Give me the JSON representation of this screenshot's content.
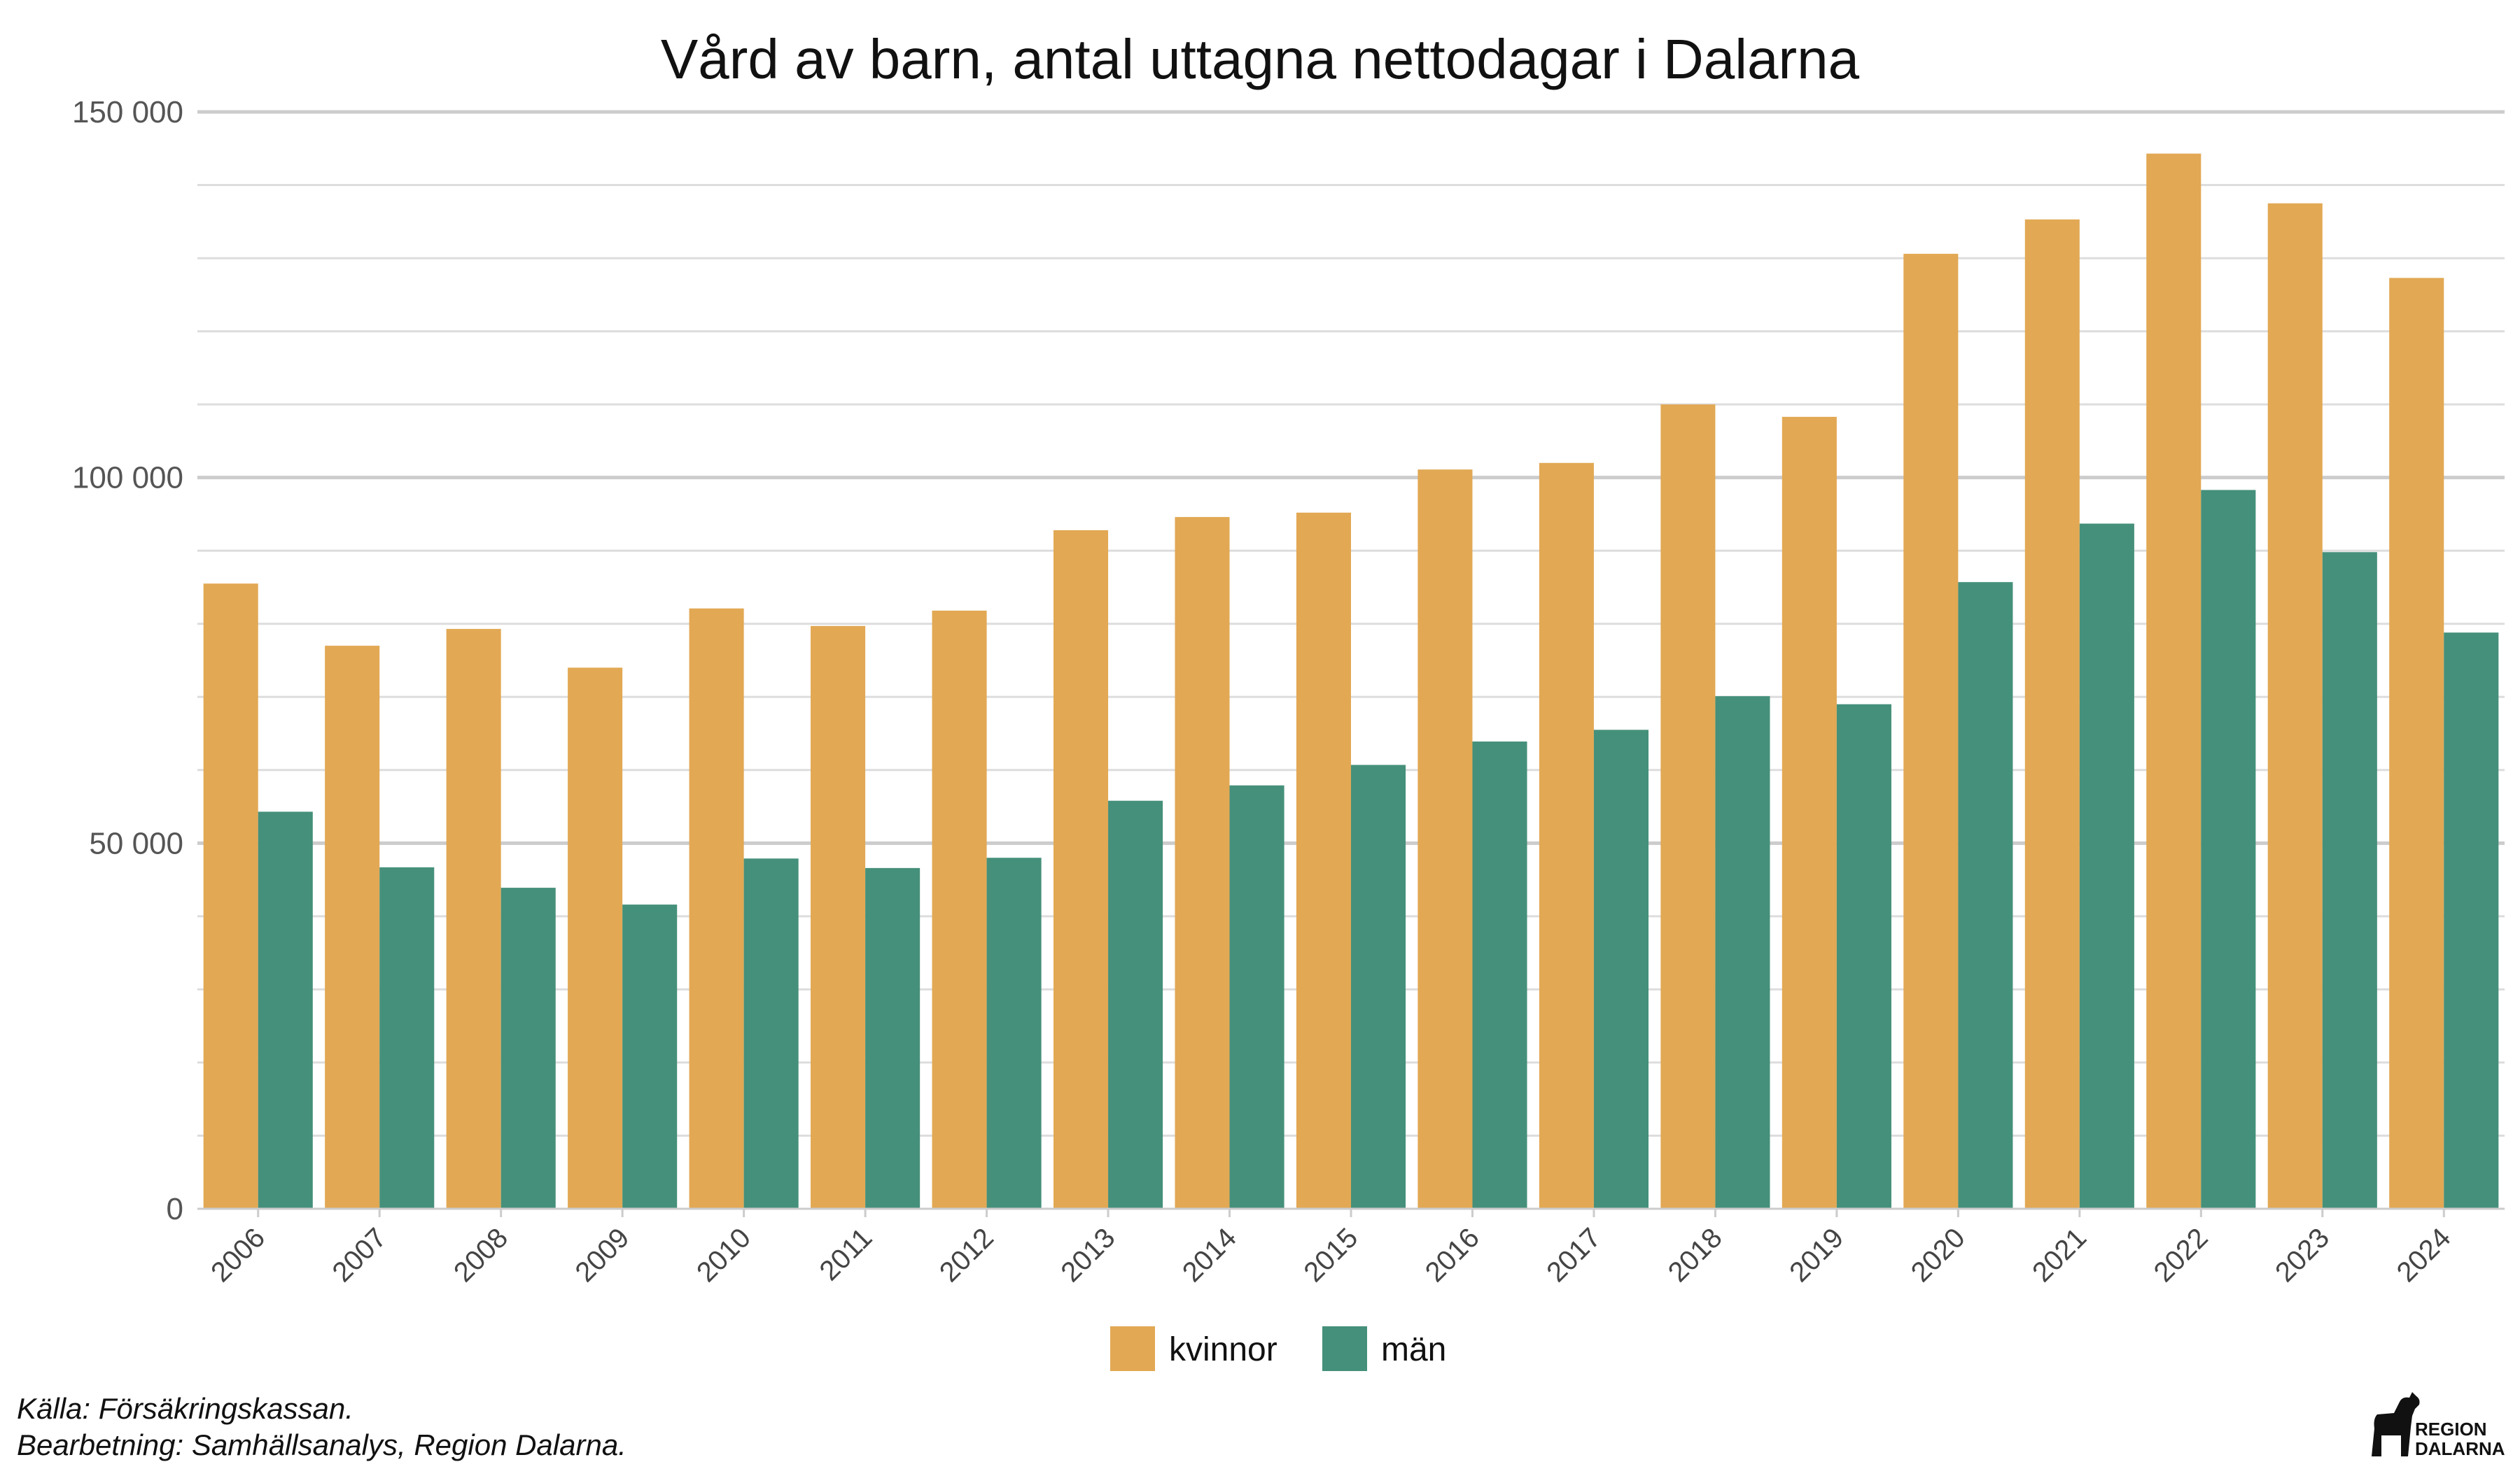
{
  "chart_data": {
    "type": "bar",
    "title": "Vård av barn, antal uttagna nettodagar i Dalarna",
    "xlabel": "",
    "ylabel": "",
    "ylim": [
      0,
      150000
    ],
    "yticks": [
      0,
      50000,
      100000,
      150000
    ],
    "ytick_labels": [
      "0",
      "50 000",
      "100 000",
      "150 000"
    ],
    "grid": true,
    "legend_position": "bottom",
    "categories": [
      "2006",
      "2007",
      "2008",
      "2009",
      "2010",
      "2011",
      "2012",
      "2013",
      "2014",
      "2015",
      "2016",
      "2017",
      "2018",
      "2019",
      "2020",
      "2021",
      "2022",
      "2023",
      "2024"
    ],
    "series": [
      {
        "name": "kvinnor",
        "color": "#E2A854",
        "values": [
          85500,
          77000,
          79300,
          74000,
          82100,
          79700,
          81800,
          92800,
          94600,
          95200,
          101100,
          102000,
          110000,
          108300,
          130600,
          135300,
          144300,
          137500,
          127300
        ]
      },
      {
        "name": "män",
        "color": "#45907A",
        "values": [
          54300,
          46700,
          43900,
          41600,
          47900,
          46600,
          48000,
          55800,
          57900,
          60700,
          63900,
          65500,
          70100,
          69000,
          85700,
          93700,
          98300,
          89800,
          78800
        ]
      }
    ]
  },
  "caption": {
    "source": "Källa: Försäkringskassan.",
    "processing": "Bearbetning: Samhällsanalys, Region Dalarna."
  },
  "logo": {
    "line1": "REGION",
    "line2": "DALARNA"
  }
}
